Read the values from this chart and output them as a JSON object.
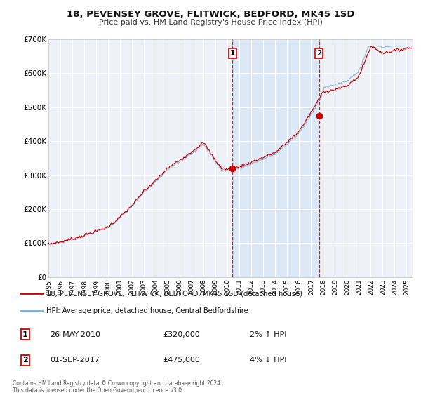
{
  "title": "18, PEVENSEY GROVE, FLITWICK, BEDFORD, MK45 1SD",
  "subtitle": "Price paid vs. HM Land Registry's House Price Index (HPI)",
  "background_color": "#ffffff",
  "plot_bg_color": "#eef2f8",
  "shade_color": "#dce8f5",
  "grid_color": "#ffffff",
  "ylim": [
    0,
    700000
  ],
  "yticks": [
    0,
    100000,
    200000,
    300000,
    400000,
    500000,
    600000,
    700000
  ],
  "ytick_labels": [
    "£0",
    "£100K",
    "£200K",
    "£300K",
    "£400K",
    "£500K",
    "£600K",
    "£700K"
  ],
  "xlim_start": 1995.0,
  "xlim_end": 2025.5,
  "sale1_x": 2010.4,
  "sale1_y": 320000,
  "sale1_label": "1",
  "sale1_date": "26-MAY-2010",
  "sale1_price": "£320,000",
  "sale1_hpi": "2% ↑ HPI",
  "sale2_x": 2017.67,
  "sale2_y": 475000,
  "sale2_label": "2",
  "sale2_date": "01-SEP-2017",
  "sale2_price": "£475,000",
  "sale2_hpi": "4% ↓ HPI",
  "line_red_color": "#cc0000",
  "line_blue_color": "#7aadd4",
  "marker_color": "#cc0000",
  "dashed_line_color": "#cc0000",
  "legend_label_red": "18, PEVENSEY GROVE, FLITWICK, BEDFORD, MK45 1SD (detached house)",
  "legend_label_blue": "HPI: Average price, detached house, Central Bedfordshire",
  "footer1": "Contains HM Land Registry data © Crown copyright and database right 2024.",
  "footer2": "This data is licensed under the Open Government Licence v3.0."
}
